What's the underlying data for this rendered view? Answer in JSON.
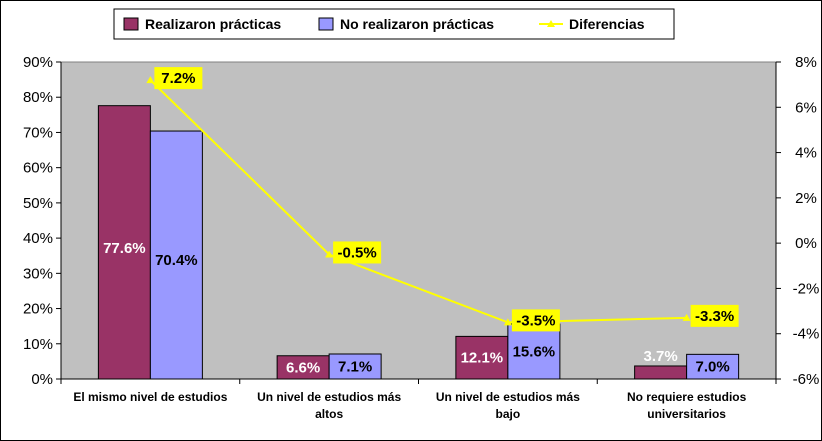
{
  "chart_data": {
    "type": "bar",
    "categories": [
      [
        "El mismo nivel de estudios"
      ],
      [
        "Un nivel de estudios  más",
        "altos"
      ],
      [
        "Un nivel de estudios  más",
        "bajo"
      ],
      [
        "No requiere estudios",
        "universitarios"
      ]
    ],
    "series": [
      {
        "name": "Realizaron prácticas",
        "type": "bar",
        "axis": "left",
        "values": [
          77.6,
          6.6,
          12.1,
          3.7
        ],
        "labels": [
          "77.6%",
          "6.6%",
          "12.1%",
          "3.7%"
        ],
        "color": "#993366"
      },
      {
        "name": "No realizaron prácticas",
        "type": "bar",
        "axis": "left",
        "values": [
          70.4,
          7.1,
          15.6,
          7.0
        ],
        "labels": [
          "70.4%",
          "7.1%",
          "15.6%",
          "7.0%"
        ],
        "color": "#9999ff"
      },
      {
        "name": "Diferencias",
        "type": "line",
        "axis": "right",
        "values": [
          7.2,
          -0.5,
          -3.5,
          -3.3
        ],
        "labels": [
          "7.2%",
          "-0.5%",
          "-3.5%",
          "-3.3%"
        ],
        "color": "#ffff00"
      }
    ],
    "y_left": {
      "min": 0,
      "max": 90,
      "ticks": [
        0,
        10,
        20,
        30,
        40,
        50,
        60,
        70,
        80,
        90
      ],
      "tick_labels": [
        "0%",
        "10%",
        "20%",
        "30%",
        "40%",
        "50%",
        "60%",
        "70%",
        "80%",
        "90%"
      ]
    },
    "y_right": {
      "min": -6,
      "max": 8,
      "ticks": [
        -6,
        -4,
        -2,
        0,
        2,
        4,
        6,
        8
      ],
      "tick_labels": [
        "-6%",
        "-4%",
        "-2%",
        "0%",
        "2%",
        "4%",
        "6%",
        "8%"
      ]
    },
    "legend_position": "top",
    "grid": false,
    "plot_background": "#c0c0c0"
  }
}
